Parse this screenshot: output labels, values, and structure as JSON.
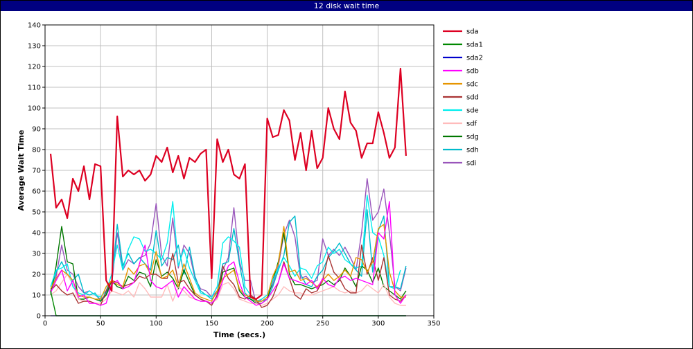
{
  "window": {
    "title": "12 disk wait time"
  },
  "chart_data": {
    "type": "line",
    "title": "12 disk wait time",
    "xlabel": "Time (secs.)",
    "ylabel": "Average Wait Time",
    "xlim": [
      0,
      350
    ],
    "ylim": [
      0,
      140
    ],
    "xticks": [
      0,
      50,
      100,
      150,
      200,
      250,
      300,
      350
    ],
    "yticks": [
      0,
      10,
      20,
      30,
      40,
      50,
      60,
      70,
      80,
      90,
      100,
      110,
      120,
      130,
      140
    ],
    "grid": true,
    "legend_position": "right",
    "x": [
      5,
      10,
      15,
      20,
      25,
      30,
      35,
      40,
      45,
      50,
      55,
      60,
      65,
      70,
      75,
      80,
      85,
      90,
      95,
      100,
      105,
      110,
      115,
      120,
      125,
      130,
      135,
      140,
      145,
      150,
      155,
      160,
      165,
      170,
      175,
      180,
      185,
      190,
      195,
      200,
      205,
      210,
      215,
      220,
      225,
      230,
      235,
      240,
      245,
      250,
      255,
      260,
      265,
      270,
      275,
      280,
      285,
      290,
      295,
      300,
      305,
      310,
      315,
      320,
      325,
      330
    ],
    "series": [
      {
        "name": "sda",
        "color": "#dd0022",
        "width": 2.2,
        "values": [
          78,
          52,
          56,
          47,
          66,
          60,
          72,
          56,
          73,
          72,
          17,
          12,
          96,
          67,
          70,
          68,
          70,
          65,
          68,
          77,
          74,
          81,
          69,
          77,
          66,
          76,
          74,
          78,
          80,
          18,
          85,
          74,
          80,
          68,
          66,
          73,
          9,
          8,
          10,
          95,
          86,
          87,
          99,
          94,
          75,
          88,
          70,
          89,
          71,
          76,
          100,
          90,
          85,
          108,
          93,
          89,
          76,
          83,
          83,
          98,
          88,
          76,
          81,
          119,
          77,
          null
        ]
      },
      {
        "name": "sda1",
        "color": "#008800",
        "width": 1.4,
        "values": [
          12,
          0,
          0,
          0,
          0,
          0,
          0,
          0,
          0,
          0,
          0,
          0,
          0,
          0,
          0,
          0,
          0,
          0,
          0,
          0,
          0,
          0,
          0,
          0,
          0,
          0,
          0,
          0,
          0,
          0,
          0,
          0,
          0,
          0,
          0,
          0,
          0,
          0,
          0,
          0,
          0,
          0,
          0,
          0,
          0,
          0,
          0,
          0,
          0,
          0,
          0,
          0,
          0,
          0,
          0,
          0,
          0,
          0,
          0,
          0,
          0,
          0,
          0,
          0,
          0,
          null
        ]
      },
      {
        "name": "sda2",
        "color": "#0000cc",
        "width": 1.2,
        "values": [
          0,
          0,
          0,
          0,
          0,
          0,
          0,
          0,
          0,
          0,
          0,
          0,
          0,
          0,
          0,
          0,
          0,
          0,
          0,
          0,
          0,
          0,
          0,
          0,
          0,
          0,
          0,
          0,
          0,
          0,
          0,
          0,
          0,
          0,
          0,
          0,
          0,
          0,
          0,
          0,
          0,
          0,
          0,
          0,
          0,
          0,
          0,
          0,
          0,
          0,
          0,
          0,
          0,
          0,
          0,
          0,
          0,
          0,
          0,
          0,
          0,
          0,
          0,
          0,
          0,
          null
        ]
      },
      {
        "name": "sdb",
        "color": "#ff00ff",
        "width": 1.4,
        "values": [
          11,
          17,
          22,
          12,
          17,
          9,
          10,
          6,
          6,
          5,
          6,
          15,
          17,
          13,
          14,
          16,
          25,
          34,
          17,
          14,
          13,
          15,
          17,
          9,
          14,
          11,
          8,
          7,
          7,
          6,
          9,
          17,
          24,
          26,
          16,
          9,
          7,
          5,
          6,
          8,
          12,
          16,
          25,
          18,
          17,
          16,
          15,
          17,
          13,
          18,
          15,
          14,
          18,
          19,
          17,
          18,
          17,
          16,
          15,
          40,
          37,
          55,
          10,
          6,
          10,
          null
        ]
      },
      {
        "name": "sdc",
        "color": "#e69500",
        "width": 1.4,
        "values": [
          13,
          18,
          22,
          20,
          17,
          10,
          9,
          9,
          8,
          8,
          14,
          17,
          15,
          14,
          23,
          20,
          24,
          25,
          20,
          31,
          18,
          19,
          22,
          14,
          25,
          18,
          11,
          9,
          8,
          7,
          12,
          18,
          20,
          22,
          13,
          10,
          9,
          7,
          7,
          9,
          19,
          25,
          43,
          21,
          22,
          17,
          18,
          16,
          14,
          17,
          20,
          17,
          19,
          22,
          19,
          28,
          27,
          21,
          26,
          42,
          44,
          21,
          12,
          9,
          9,
          null
        ]
      },
      {
        "name": "sdd",
        "color": "#aa3333",
        "width": 1.4,
        "values": [
          12,
          15,
          12,
          10,
          11,
          6,
          7,
          7,
          6,
          5,
          12,
          17,
          16,
          14,
          15,
          16,
          19,
          18,
          20,
          20,
          18,
          18,
          30,
          16,
          17,
          13,
          10,
          8,
          7,
          5,
          10,
          24,
          18,
          15,
          9,
          8,
          10,
          8,
          4,
          5,
          9,
          16,
          26,
          18,
          10,
          8,
          13,
          11,
          12,
          17,
          29,
          21,
          18,
          13,
          11,
          11,
          34,
          20,
          28,
          17,
          28,
          10,
          8,
          7,
          10,
          null
        ]
      },
      {
        "name": "sde",
        "color": "#00eeee",
        "width": 1.4,
        "values": [
          14,
          22,
          23,
          25,
          14,
          11,
          10,
          12,
          10,
          9,
          12,
          20,
          34,
          22,
          32,
          38,
          37,
          31,
          32,
          30,
          27,
          35,
          55,
          24,
          32,
          23,
          17,
          11,
          10,
          9,
          14,
          35,
          38,
          36,
          33,
          14,
          10,
          7,
          8,
          10,
          17,
          23,
          28,
          24,
          19,
          23,
          22,
          18,
          24,
          26,
          33,
          30,
          32,
          27,
          25,
          23,
          24,
          58,
          40,
          38,
          29,
          14,
          13,
          22,
          null,
          null
        ]
      },
      {
        "name": "sdf",
        "color": "#ffbbbb",
        "width": 1.4,
        "values": [
          10,
          12,
          16,
          20,
          15,
          8,
          7,
          7,
          6,
          6,
          8,
          12,
          11,
          10,
          12,
          9,
          16,
          13,
          9,
          9,
          9,
          15,
          7,
          14,
          12,
          9,
          8,
          7,
          7,
          6,
          8,
          15,
          16,
          13,
          8,
          7,
          6,
          6,
          5,
          6,
          8,
          10,
          14,
          12,
          11,
          11,
          10,
          10,
          11,
          12,
          13,
          14,
          12,
          11,
          12,
          11,
          12,
          15,
          13,
          11,
          15,
          9,
          6,
          5,
          5,
          null
        ]
      },
      {
        "name": "sdg",
        "color": "#007700",
        "width": 1.4,
        "values": [
          10,
          24,
          43,
          26,
          25,
          8,
          8,
          9,
          8,
          7,
          10,
          17,
          14,
          13,
          19,
          17,
          21,
          20,
          14,
          27,
          19,
          21,
          18,
          13,
          22,
          16,
          10,
          8,
          7,
          6,
          9,
          21,
          22,
          23,
          12,
          9,
          8,
          6,
          6,
          8,
          17,
          26,
          40,
          20,
          15,
          15,
          14,
          13,
          14,
          15,
          17,
          15,
          17,
          23,
          19,
          14,
          24,
          22,
          16,
          23,
          14,
          12,
          10,
          8,
          12,
          null
        ]
      },
      {
        "name": "sdh",
        "color": "#00bbcc",
        "width": 1.4,
        "values": [
          12,
          21,
          26,
          20,
          17,
          20,
          11,
          10,
          11,
          7,
          11,
          17,
          44,
          24,
          30,
          25,
          28,
          25,
          22,
          41,
          24,
          28,
          27,
          34,
          20,
          33,
          19,
          12,
          10,
          8,
          11,
          25,
          26,
          42,
          25,
          11,
          8,
          7,
          7,
          8,
          14,
          22,
          29,
          45,
          48,
          20,
          15,
          14,
          19,
          22,
          28,
          31,
          35,
          30,
          25,
          22,
          19,
          51,
          21,
          41,
          48,
          14,
          14,
          13,
          24,
          null
        ]
      },
      {
        "name": "sdi",
        "color": "#9955bb",
        "width": 1.4,
        "values": [
          11,
          19,
          34,
          22,
          20,
          14,
          11,
          12,
          10,
          8,
          10,
          15,
          40,
          22,
          27,
          25,
          28,
          29,
          35,
          54,
          29,
          24,
          47,
          23,
          34,
          30,
          18,
          13,
          12,
          9,
          12,
          22,
          28,
          52,
          26,
          17,
          17,
          6,
          8,
          10,
          15,
          24,
          39,
          46,
          38,
          18,
          19,
          16,
          17,
          37,
          29,
          32,
          29,
          33,
          28,
          22,
          40,
          66,
          46,
          50,
          61,
          40,
          14,
          12,
          23,
          null
        ]
      }
    ]
  }
}
